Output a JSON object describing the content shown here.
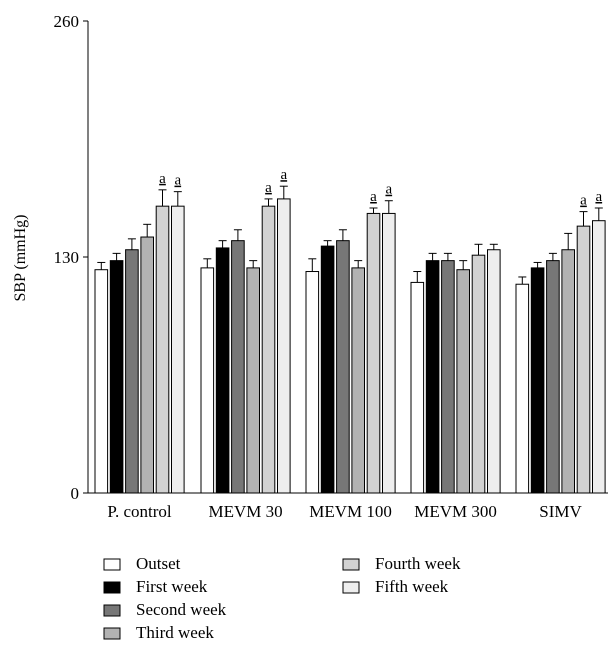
{
  "chart_data": {
    "type": "bar",
    "ylabel": "SBP (mmHg)",
    "ylim": [
      0,
      260
    ],
    "yticks": [
      0,
      130,
      260
    ],
    "categories": [
      "P. control",
      "MEVM 30",
      "MEVM 100",
      "MEVM 300",
      "SIMV"
    ],
    "series": [
      {
        "name": "Outset",
        "color": "#ffffff",
        "values": [
          123,
          124,
          122,
          116,
          115
        ],
        "errors": [
          4,
          5,
          7,
          6,
          4
        ]
      },
      {
        "name": "First week",
        "color": "#000000",
        "values": [
          128,
          135,
          136,
          128,
          124
        ],
        "errors": [
          4,
          4,
          3,
          4,
          3
        ]
      },
      {
        "name": "Second week",
        "color": "#777777",
        "values": [
          134,
          139,
          139,
          128,
          128
        ],
        "errors": [
          6,
          6,
          6,
          4,
          4
        ]
      },
      {
        "name": "Third week",
        "color": "#b2b2b2",
        "values": [
          141,
          124,
          124,
          123,
          134
        ],
        "errors": [
          7,
          4,
          4,
          5,
          9
        ]
      },
      {
        "name": "Fourth week",
        "color": "#d2d2d2",
        "values": [
          158,
          158,
          154,
          131,
          147
        ],
        "errors": [
          9,
          4,
          3,
          6,
          8
        ]
      },
      {
        "name": "Fifth week",
        "color": "#eeeeee",
        "values": [
          158,
          162,
          154,
          134,
          150
        ],
        "errors": [
          8,
          7,
          7,
          3,
          7
        ]
      }
    ],
    "annotations": [
      {
        "category": "P. control",
        "series": "Fourth week",
        "text": "a"
      },
      {
        "category": "P. control",
        "series": "Fifth week",
        "text": "a"
      },
      {
        "category": "MEVM 30",
        "series": "Fourth week",
        "text": "a"
      },
      {
        "category": "MEVM 30",
        "series": "Fifth week",
        "text": "a"
      },
      {
        "category": "MEVM 100",
        "series": "Fourth week",
        "text": "a"
      },
      {
        "category": "MEVM 100",
        "series": "Fifth week",
        "text": "a"
      },
      {
        "category": "SIMV",
        "series": "Fourth week",
        "text": "a"
      },
      {
        "category": "SIMV",
        "series": "Fifth week",
        "text": "a"
      }
    ],
    "legend_position": "bottom",
    "grid": false
  }
}
